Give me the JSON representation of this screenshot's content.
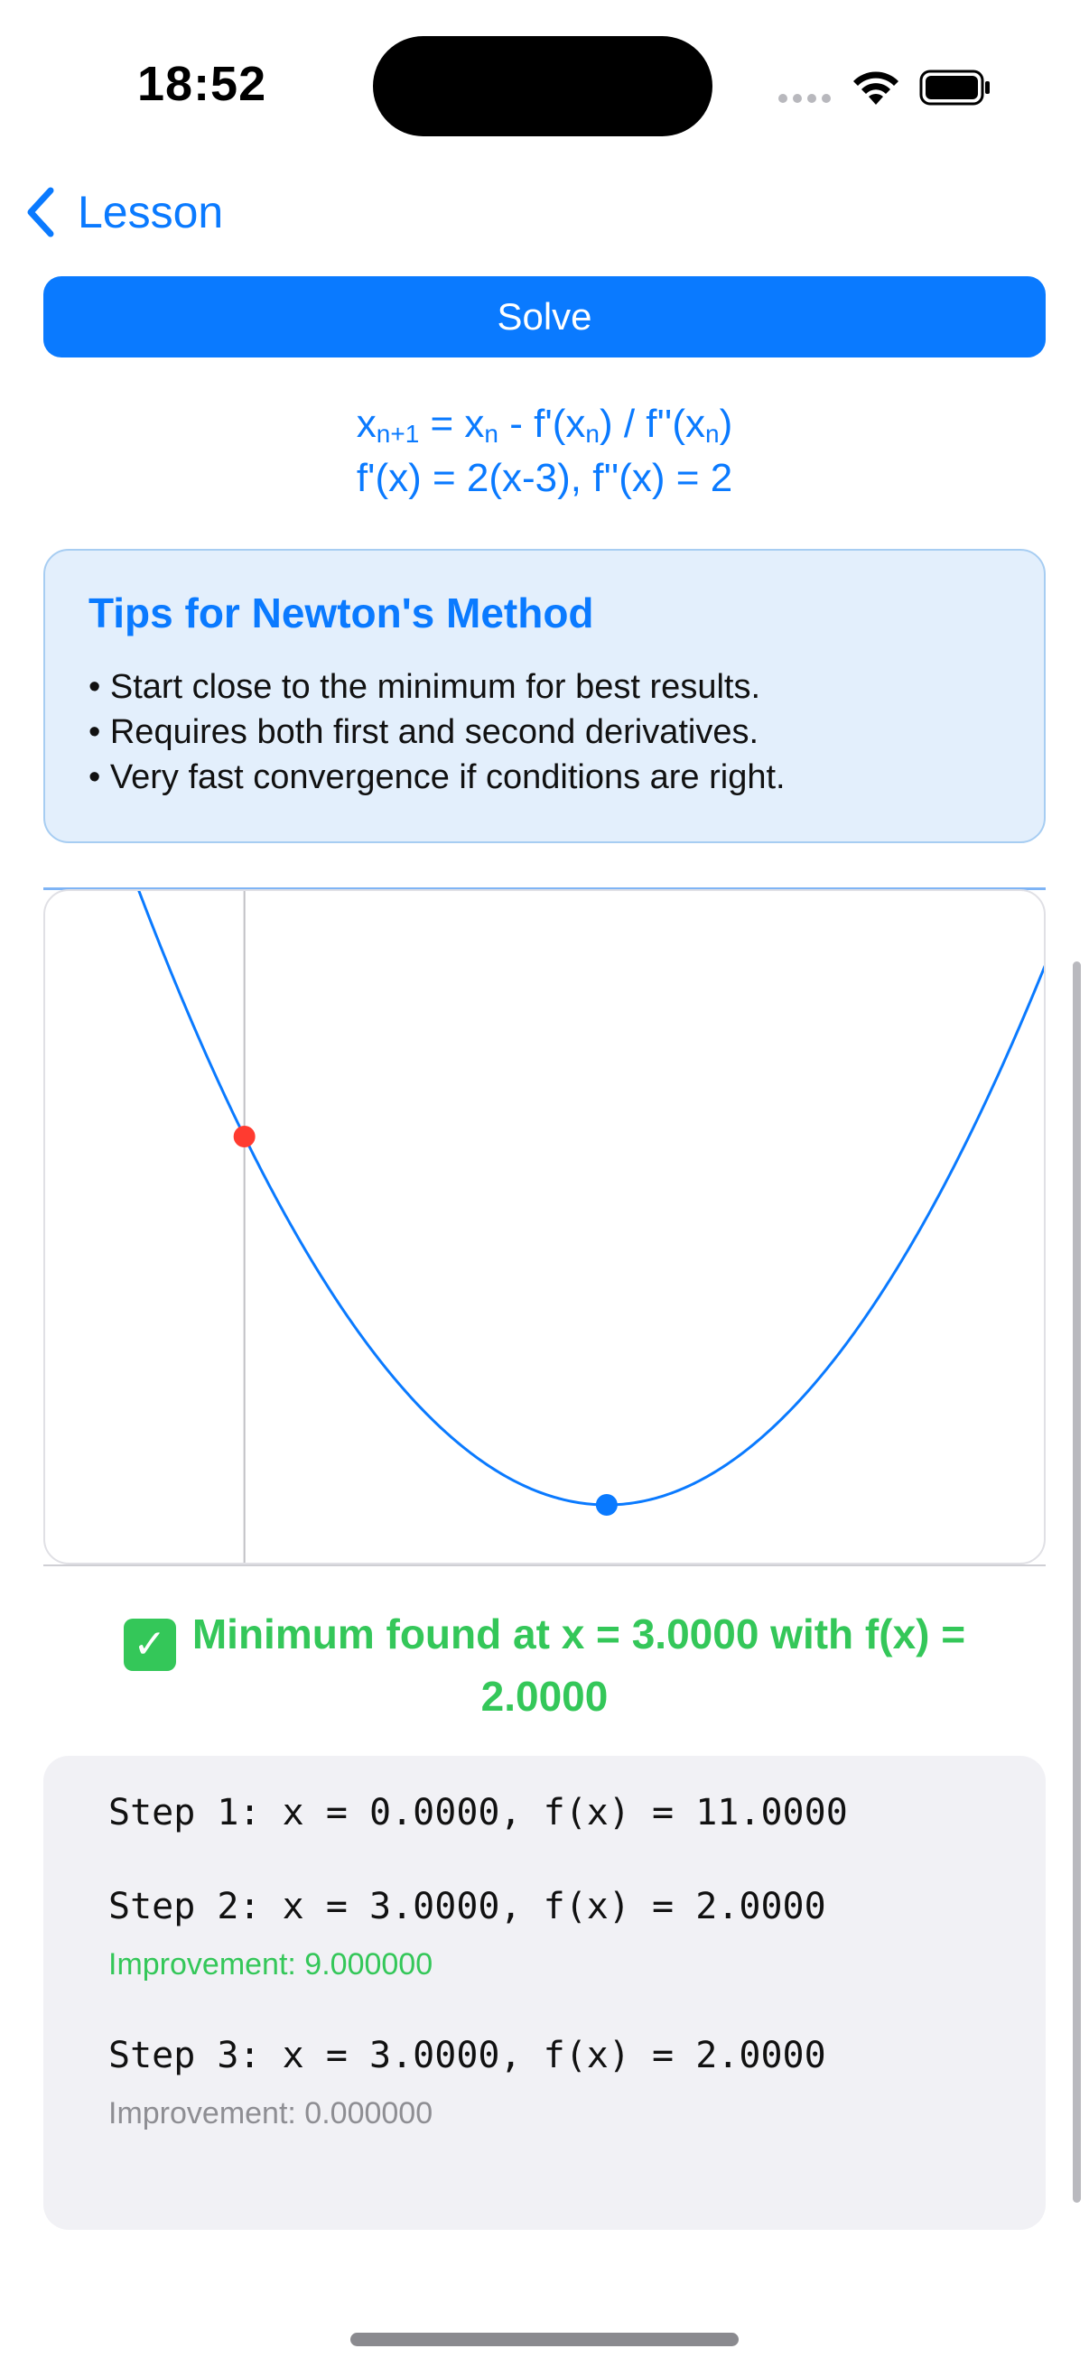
{
  "status_bar": {
    "time": "18:52"
  },
  "nav": {
    "back_label": "Lesson"
  },
  "actions": {
    "solve_label": "Solve"
  },
  "formula": {
    "line1": {
      "x1": "x",
      "sub_next": "n+1",
      "eq": " = x",
      "sub_n": "n",
      "rest1": " - f'(x",
      "sub_n2": "n",
      "rest2": ") / f''(x",
      "sub_n3": "n",
      "rest3": ")"
    },
    "line2": "f'(x) = 2(x-3), f''(x) = 2"
  },
  "tips": {
    "title": "Tips for Newton's Method",
    "items": [
      "• Start close to the minimum for best results.",
      "• Requires both first and second derivatives.",
      "• Very fast convergence if conditions are right."
    ]
  },
  "chart_data": {
    "type": "line",
    "x_range": [
      -1.65,
      6.65
    ],
    "y_range": [
      0.5,
      17
    ],
    "curve": {
      "formula": "f(x) = (x-3)^2 + 2",
      "color": "#0a7aff"
    },
    "points": [
      {
        "x": 0,
        "y": 11,
        "color": "#ff3b30"
      },
      {
        "x": 3,
        "y": 2,
        "color": "#0a7aff"
      }
    ],
    "vertical_line_x": 0
  },
  "result": {
    "icon": "check-mark-button-icon",
    "text": "Minimum found at x = 3.0000 with f(x) = 2.0000"
  },
  "steps": [
    {
      "text": "Step 1: x = 0.0000, f(x) = 11.0000",
      "improvement": ""
    },
    {
      "text": "Step 2: x = 3.0000, f(x) = 2.0000",
      "improvement": "Improvement: 9.000000",
      "impr_color": "green"
    },
    {
      "text": "Step 3: x = 3.0000, f(x) = 2.0000",
      "improvement": "Improvement: 0.000000",
      "impr_color": "gray"
    }
  ]
}
